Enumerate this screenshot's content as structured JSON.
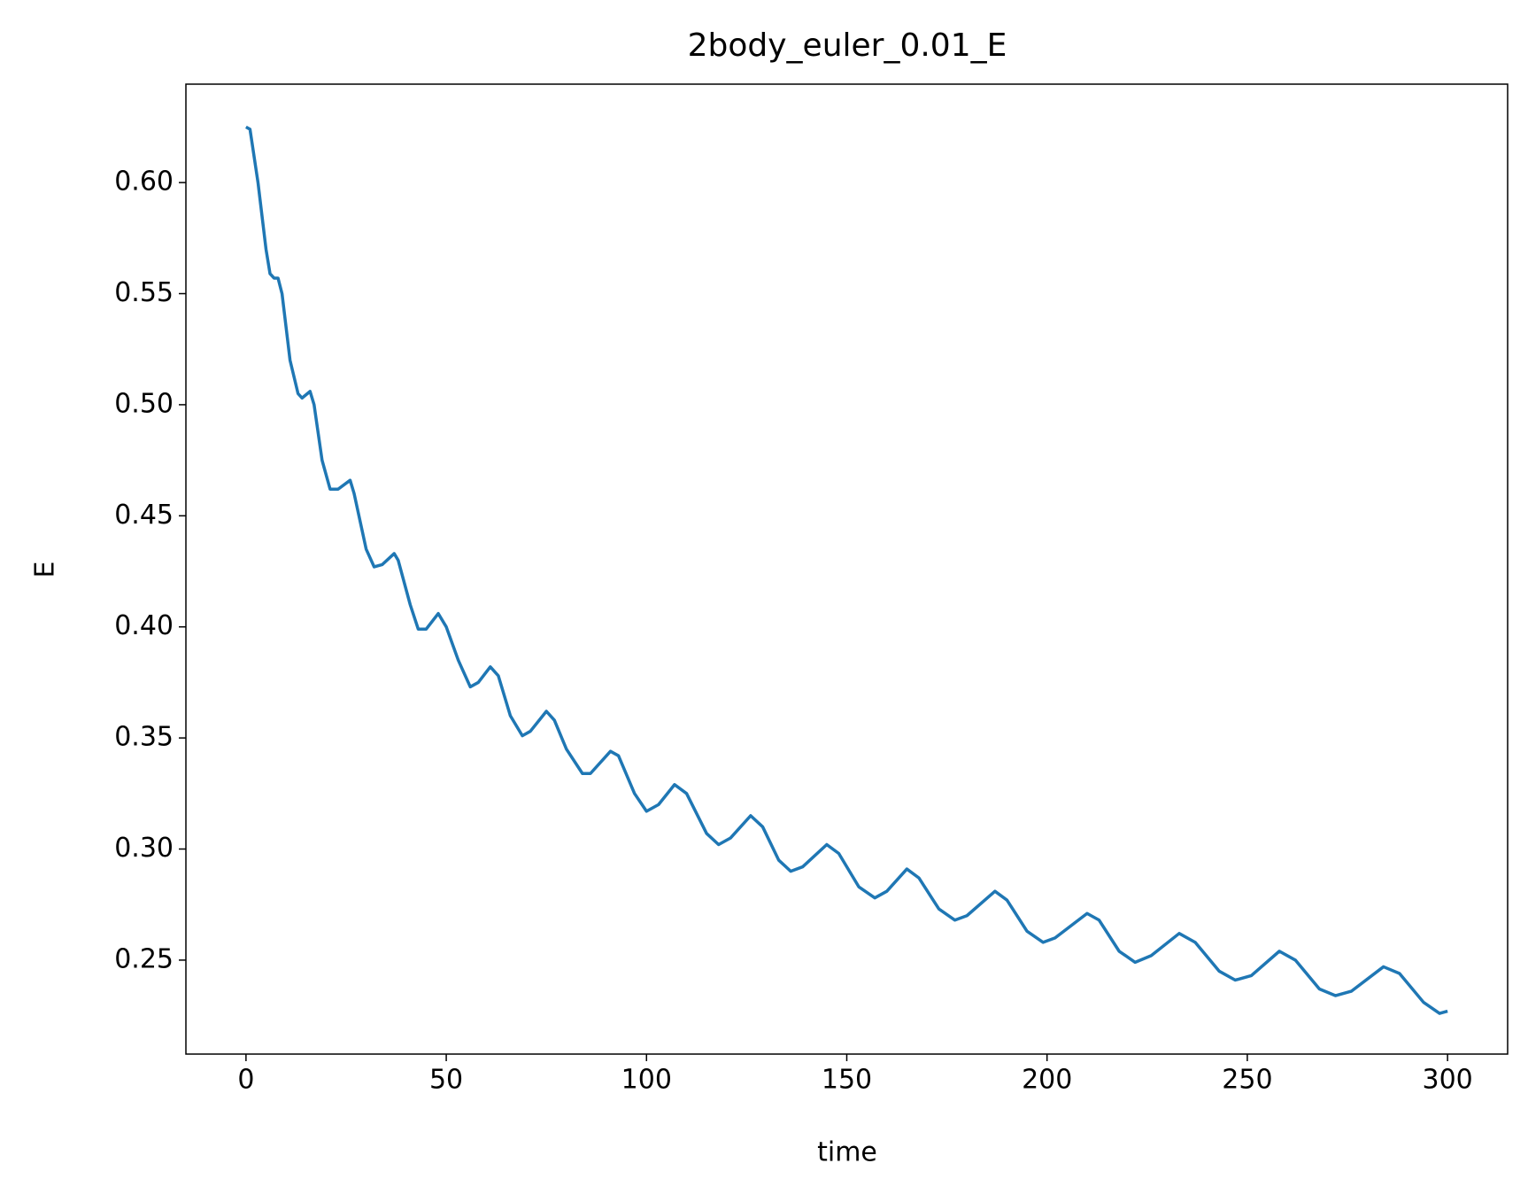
{
  "chart_data": {
    "type": "line",
    "title": "2body_euler_0.01_E",
    "x_label": "time",
    "y_label": "E",
    "color": "#1f77b4",
    "x": [
      0,
      1,
      3,
      5,
      6,
      7,
      8,
      9,
      11,
      13,
      14,
      16,
      17,
      19,
      21,
      23,
      26,
      27,
      30,
      32,
      34,
      37,
      38,
      41,
      43,
      45,
      48,
      50,
      53,
      56,
      58,
      61,
      63,
      66,
      69,
      71,
      75,
      77,
      80,
      84,
      86,
      91,
      93,
      97,
      100,
      103,
      107,
      110,
      115,
      118,
      121,
      126,
      129,
      133,
      136,
      139,
      145,
      148,
      153,
      157,
      160,
      165,
      168,
      173,
      177,
      180,
      187,
      190,
      195,
      199,
      202,
      210,
      213,
      218,
      222,
      226,
      233,
      237,
      243,
      247,
      251,
      258,
      262,
      268,
      272,
      276,
      284,
      288,
      294,
      298,
      300
    ],
    "values": [
      0.625,
      0.624,
      0.6,
      0.57,
      0.559,
      0.557,
      0.557,
      0.55,
      0.52,
      0.505,
      0.503,
      0.506,
      0.5,
      0.475,
      0.462,
      0.462,
      0.466,
      0.46,
      0.435,
      0.427,
      0.428,
      0.433,
      0.43,
      0.41,
      0.399,
      0.399,
      0.406,
      0.4,
      0.385,
      0.373,
      0.375,
      0.382,
      0.378,
      0.36,
      0.351,
      0.353,
      0.362,
      0.358,
      0.345,
      0.334,
      0.334,
      0.344,
      0.342,
      0.325,
      0.317,
      0.32,
      0.329,
      0.325,
      0.307,
      0.302,
      0.305,
      0.315,
      0.31,
      0.295,
      0.29,
      0.292,
      0.302,
      0.298,
      0.283,
      0.278,
      0.281,
      0.291,
      0.287,
      0.273,
      0.268,
      0.27,
      0.281,
      0.277,
      0.263,
      0.258,
      0.26,
      0.271,
      0.268,
      0.254,
      0.249,
      0.252,
      0.262,
      0.258,
      0.245,
      0.241,
      0.243,
      0.254,
      0.25,
      0.237,
      0.234,
      0.236,
      0.247,
      0.244,
      0.231,
      0.226,
      0.227
    ],
    "xlim": [
      -15,
      315
    ],
    "xticks": [
      0,
      50,
      100,
      150,
      200,
      250,
      300
    ],
    "ylim": [
      0.2077,
      0.6443
    ],
    "yticks": [
      0.25,
      {
        "value": 0.3,
        "label": "0.30"
      },
      0.35,
      {
        "value": 0.4,
        "label": "0.40"
      },
      0.45,
      {
        "value": 0.5,
        "label": "0.50"
      },
      0.55,
      {
        "value": 0.6,
        "label": "0.60"
      }
    ],
    "grid": false
  }
}
